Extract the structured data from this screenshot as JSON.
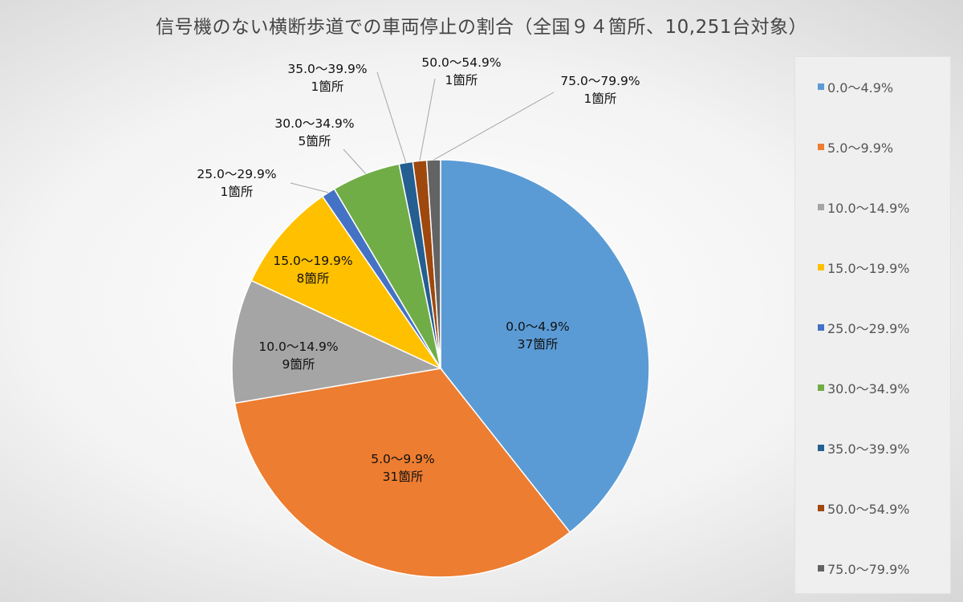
{
  "chart_data": {
    "type": "pie",
    "title": "信号機のない横断歩道での車両停止の割合（全国９４箇所、10,251台対象）",
    "unit": "箇所",
    "legend_position": "right",
    "slices": [
      {
        "label": "0.0～4.9%",
        "value": 37,
        "count_label": "37箇所",
        "color": "#5b9bd5"
      },
      {
        "label": "5.0～9.9%",
        "value": 31,
        "count_label": "31箇所",
        "color": "#ed7d31"
      },
      {
        "label": "10.0～14.9%",
        "value": 9,
        "count_label": "9箇所",
        "color": "#a5a5a5"
      },
      {
        "label": "15.0～19.9%",
        "value": 8,
        "count_label": "8箇所",
        "color": "#ffc000"
      },
      {
        "label": "25.0～29.9%",
        "value": 1,
        "count_label": "1箇所",
        "color": "#4472c4"
      },
      {
        "label": "30.0～34.9%",
        "value": 5,
        "count_label": "5箇所",
        "color": "#70ad47"
      },
      {
        "label": "35.0～39.9%",
        "value": 1,
        "count_label": "1箇所",
        "color": "#255e91"
      },
      {
        "label": "50.0～54.9%",
        "value": 1,
        "count_label": "1箇所",
        "color": "#9e480e"
      },
      {
        "label": "75.0～79.9%",
        "value": 1,
        "count_label": "1箇所",
        "color": "#636363"
      }
    ]
  }
}
